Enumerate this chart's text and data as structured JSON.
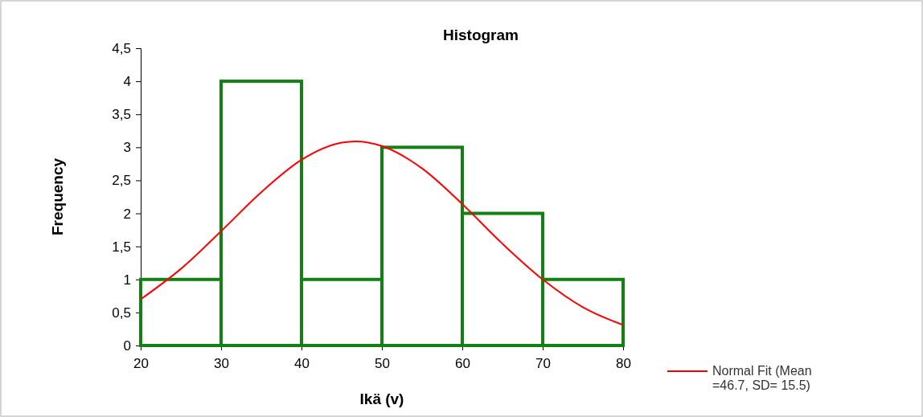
{
  "chart_data": {
    "type": "histogram",
    "title": "Histogram",
    "xlabel": "Ikä (v)",
    "ylabel": "Frequency",
    "bins": [
      20,
      30,
      40,
      50,
      60,
      70,
      80
    ],
    "values": [
      1,
      4,
      1,
      3,
      2,
      1
    ],
    "color": "#138013",
    "series": [
      {
        "type": "line",
        "name": "Normal Fit (Mean =46.7, SD= 15.5)",
        "color": "#ff0000",
        "x": [
          20,
          25,
          30,
          35,
          40,
          45,
          46.7,
          50,
          55,
          60,
          65,
          70,
          75,
          80
        ],
        "values": [
          0.7,
          1.16,
          1.73,
          2.32,
          2.81,
          3.07,
          3.09,
          3.02,
          2.68,
          2.14,
          1.54,
          1.0,
          0.58,
          0.31
        ]
      }
    ],
    "xlim": [
      20,
      80
    ],
    "xticks": [
      20,
      30,
      40,
      50,
      60,
      70,
      80
    ],
    "ylim": [
      0,
      4.5
    ],
    "yticks": [
      0,
      {
        "value": 0.5,
        "label": "0,5"
      },
      1,
      {
        "value": 1.5,
        "label": "1,5"
      },
      2,
      {
        "value": 2.5,
        "label": "2,5"
      },
      3,
      {
        "value": 3.5,
        "label": "3,5"
      },
      4,
      {
        "value": 4.5,
        "label": "4,5"
      }
    ],
    "grid": false,
    "legend": "bottom right",
    "marker": "none",
    "line_style": "solid"
  }
}
